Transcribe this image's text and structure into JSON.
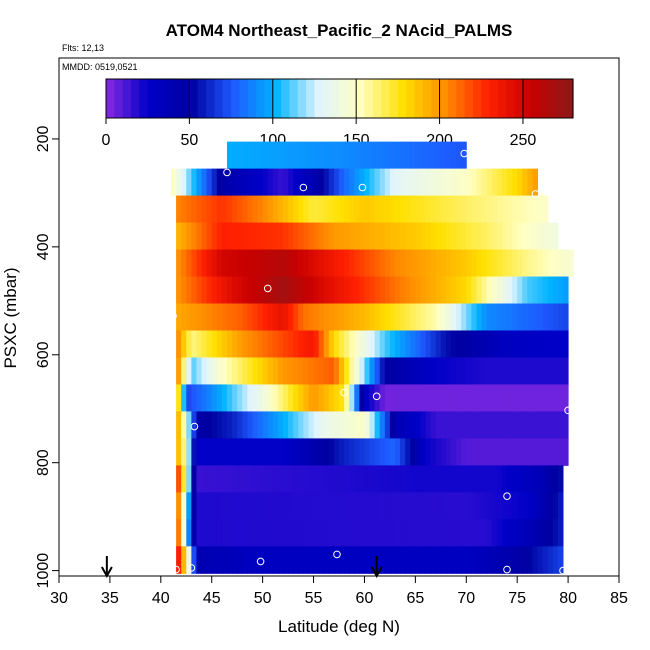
{
  "chart_data": {
    "type": "heatmap",
    "title": "ATOM4 Northeast_Pacific_2 NAcid_PALMS",
    "flights_label": "Flts: 12,13",
    "dates_label": "MMDD: 0519,0521",
    "xlabel": "Latitude (deg N)",
    "ylabel": "PSXC (mbar)",
    "xlim": [
      30,
      85
    ],
    "ylim": [
      1010,
      50
    ],
    "x_ticks": [
      30,
      35,
      40,
      45,
      50,
      55,
      60,
      65,
      70,
      75,
      80,
      85
    ],
    "y_ticks": [
      200,
      400,
      600,
      800,
      1000
    ],
    "colorbar": {
      "range": [
        0,
        280
      ],
      "ticks": [
        0,
        50,
        100,
        150,
        200,
        250
      ],
      "colors": [
        "#8a2be2",
        "#0000c8",
        "#0000a0",
        "#1e5aff",
        "#00b4ff",
        "#e0f4ff",
        "#ffffc0",
        "#ffe000",
        "#ff8c00",
        "#ff2000",
        "#c80000",
        "#8b1a1a"
      ]
    },
    "markers": [
      34.7,
      61.2
    ],
    "rows": [
      {
        "p": 230,
        "x0": 46.5,
        "x1": 70,
        "stops": [
          [
            46.5,
            100
          ],
          [
            58,
            90
          ],
          [
            70,
            75
          ]
        ]
      },
      {
        "p": 280,
        "x0": 41,
        "x1": 77,
        "stops": [
          [
            41,
            155
          ],
          [
            43,
            110
          ],
          [
            46,
            45
          ],
          [
            49,
            30
          ],
          [
            52,
            15
          ],
          [
            55,
            40
          ],
          [
            58,
            80
          ],
          [
            63,
            130
          ],
          [
            70,
            150
          ],
          [
            75,
            180
          ],
          [
            77,
            200
          ]
        ]
      },
      {
        "p": 330,
        "x0": 41.5,
        "x1": 78,
        "stops": [
          [
            41.5,
            205
          ],
          [
            46,
            225
          ],
          [
            50,
            205
          ],
          [
            55,
            170
          ],
          [
            60,
            185
          ],
          [
            70,
            165
          ],
          [
            78,
            150
          ]
        ]
      },
      {
        "p": 380,
        "x0": 41.5,
        "x1": 79,
        "stops": [
          [
            41.5,
            190
          ],
          [
            46,
            230
          ],
          [
            52,
            225
          ],
          [
            57,
            200
          ],
          [
            65,
            185
          ],
          [
            72,
            165
          ],
          [
            79,
            140
          ]
        ]
      },
      {
        "p": 430,
        "x0": 41.5,
        "x1": 80.5,
        "stops": [
          [
            41.5,
            200
          ],
          [
            46,
            250
          ],
          [
            52,
            262
          ],
          [
            57,
            235
          ],
          [
            63,
            205
          ],
          [
            70,
            185
          ],
          [
            76,
            160
          ],
          [
            80.5,
            145
          ]
        ]
      },
      {
        "p": 480,
        "x0": 41.5,
        "x1": 80,
        "stops": [
          [
            41.5,
            200
          ],
          [
            47,
            245
          ],
          [
            52,
            270
          ],
          [
            57,
            240
          ],
          [
            63,
            210
          ],
          [
            70,
            180
          ],
          [
            76,
            110
          ],
          [
            80,
            95
          ]
        ]
      },
      {
        "p": 530,
        "x0": 41.5,
        "x1": 80,
        "stops": [
          [
            41.5,
            195
          ],
          [
            48,
            215
          ],
          [
            52,
            240
          ],
          [
            54,
            210
          ],
          [
            60,
            190
          ],
          [
            67,
            155
          ],
          [
            72,
            90
          ],
          [
            80,
            70
          ]
        ]
      },
      {
        "p": 580,
        "x0": 41.5,
        "x1": 80,
        "stops": [
          [
            41.5,
            210
          ],
          [
            43,
            160
          ],
          [
            48,
            200
          ],
          [
            55,
            235
          ],
          [
            57,
            180
          ],
          [
            62,
            110
          ],
          [
            68,
            55
          ],
          [
            74,
            30
          ],
          [
            80,
            25
          ]
        ]
      },
      {
        "p": 630,
        "x0": 41.5,
        "x1": 80,
        "stops": [
          [
            41.5,
            215
          ],
          [
            43,
            110
          ],
          [
            46,
            150
          ],
          [
            52,
            200
          ],
          [
            57,
            215
          ],
          [
            59,
            150
          ],
          [
            62,
            50
          ],
          [
            67,
            25
          ],
          [
            72,
            20
          ],
          [
            80,
            20
          ]
        ]
      },
      {
        "p": 680,
        "x0": 41.5,
        "x1": 80,
        "stops": [
          [
            41.5,
            210
          ],
          [
            42.5,
            70
          ],
          [
            45,
            90
          ],
          [
            50,
            140
          ],
          [
            55,
            200
          ],
          [
            58,
            175
          ],
          [
            60,
            30
          ],
          [
            62,
            5
          ],
          [
            80,
            5
          ]
        ]
      },
      {
        "p": 730,
        "x0": 41.5,
        "x1": 80,
        "stops": [
          [
            41.5,
            205
          ],
          [
            42.5,
            140
          ],
          [
            43.5,
            45
          ],
          [
            47,
            60
          ],
          [
            52,
            100
          ],
          [
            56,
            135
          ],
          [
            60,
            150
          ],
          [
            63,
            40
          ],
          [
            67,
            15
          ],
          [
            80,
            15
          ]
        ]
      },
      {
        "p": 780,
        "x0": 41.5,
        "x1": 80,
        "stops": [
          [
            41.5,
            200
          ],
          [
            42.5,
            150
          ],
          [
            43.5,
            25
          ],
          [
            52,
            25
          ],
          [
            58,
            60
          ],
          [
            63,
            80
          ],
          [
            66,
            25
          ],
          [
            70,
            10
          ],
          [
            80,
            10
          ]
        ]
      },
      {
        "p": 830,
        "x0": 41.5,
        "x1": 79.5,
        "stops": [
          [
            41.5,
            240
          ],
          [
            42.5,
            150
          ],
          [
            43.5,
            15
          ],
          [
            65,
            22
          ],
          [
            73,
            22
          ],
          [
            77,
            35
          ],
          [
            79.5,
            55
          ]
        ]
      },
      {
        "p": 880,
        "x0": 41.5,
        "x1": 79.5,
        "stops": [
          [
            41.5,
            230
          ],
          [
            42.5,
            120
          ],
          [
            43.5,
            20
          ],
          [
            70,
            18
          ],
          [
            76,
            25
          ],
          [
            79.5,
            60
          ]
        ]
      },
      {
        "p": 930,
        "x0": 41.5,
        "x1": 79.5,
        "stops": [
          [
            41.5,
            240
          ],
          [
            42.5,
            110
          ],
          [
            43.5,
            20
          ],
          [
            72,
            18
          ],
          [
            76,
            35
          ],
          [
            79.5,
            60
          ]
        ]
      },
      {
        "p": 980,
        "x0": 41.5,
        "x1": 79.5,
        "stops": [
          [
            41.5,
            250
          ],
          [
            42.5,
            170
          ],
          [
            43.5,
            40
          ],
          [
            50,
            30
          ],
          [
            70,
            30
          ],
          [
            75,
            45
          ],
          [
            79.5,
            70
          ]
        ]
      }
    ],
    "points": [
      {
        "x": 46.5,
        "p": 262
      },
      {
        "x": 54,
        "p": 290
      },
      {
        "x": 59.8,
        "p": 290
      },
      {
        "x": 69.8,
        "p": 227
      },
      {
        "x": 76.8,
        "p": 302
      },
      {
        "x": 50.5,
        "p": 477
      },
      {
        "x": 41.2,
        "p": 528
      },
      {
        "x": 43.3,
        "p": 733
      },
      {
        "x": 58,
        "p": 670
      },
      {
        "x": 61.2,
        "p": 677
      },
      {
        "x": 80,
        "p": 703
      },
      {
        "x": 74,
        "p": 862
      },
      {
        "x": 57.3,
        "p": 970
      },
      {
        "x": 49.8,
        "p": 983
      },
      {
        "x": 41.5,
        "p": 998
      },
      {
        "x": 43,
        "p": 995
      },
      {
        "x": 74,
        "p": 998
      },
      {
        "x": 79.5,
        "p": 1000
      }
    ]
  }
}
